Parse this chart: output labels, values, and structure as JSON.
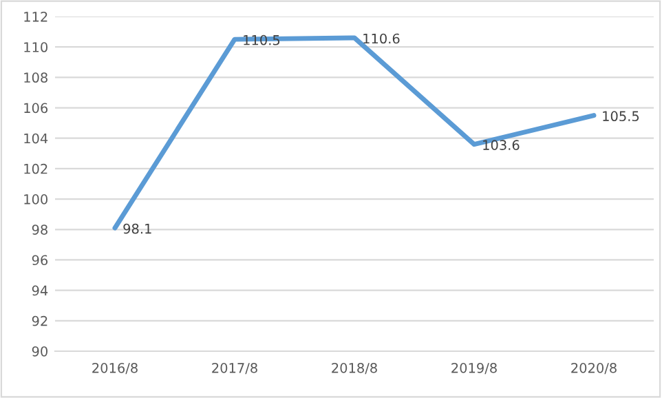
{
  "chart_data": {
    "type": "line",
    "categories": [
      "2016/8",
      "2017/8",
      "2018/8",
      "2019/8",
      "2020/8"
    ],
    "series": [
      {
        "color": "#5b9bd5",
        "values": [
          98.1,
          110.5,
          110.6,
          103.6,
          105.5
        ]
      }
    ],
    "ylim": [
      90,
      112
    ],
    "yticks": [
      90,
      92,
      94,
      96,
      98,
      100,
      102,
      104,
      106,
      108,
      110,
      112
    ],
    "grid": "y",
    "data_labels": true,
    "legend": false
  }
}
